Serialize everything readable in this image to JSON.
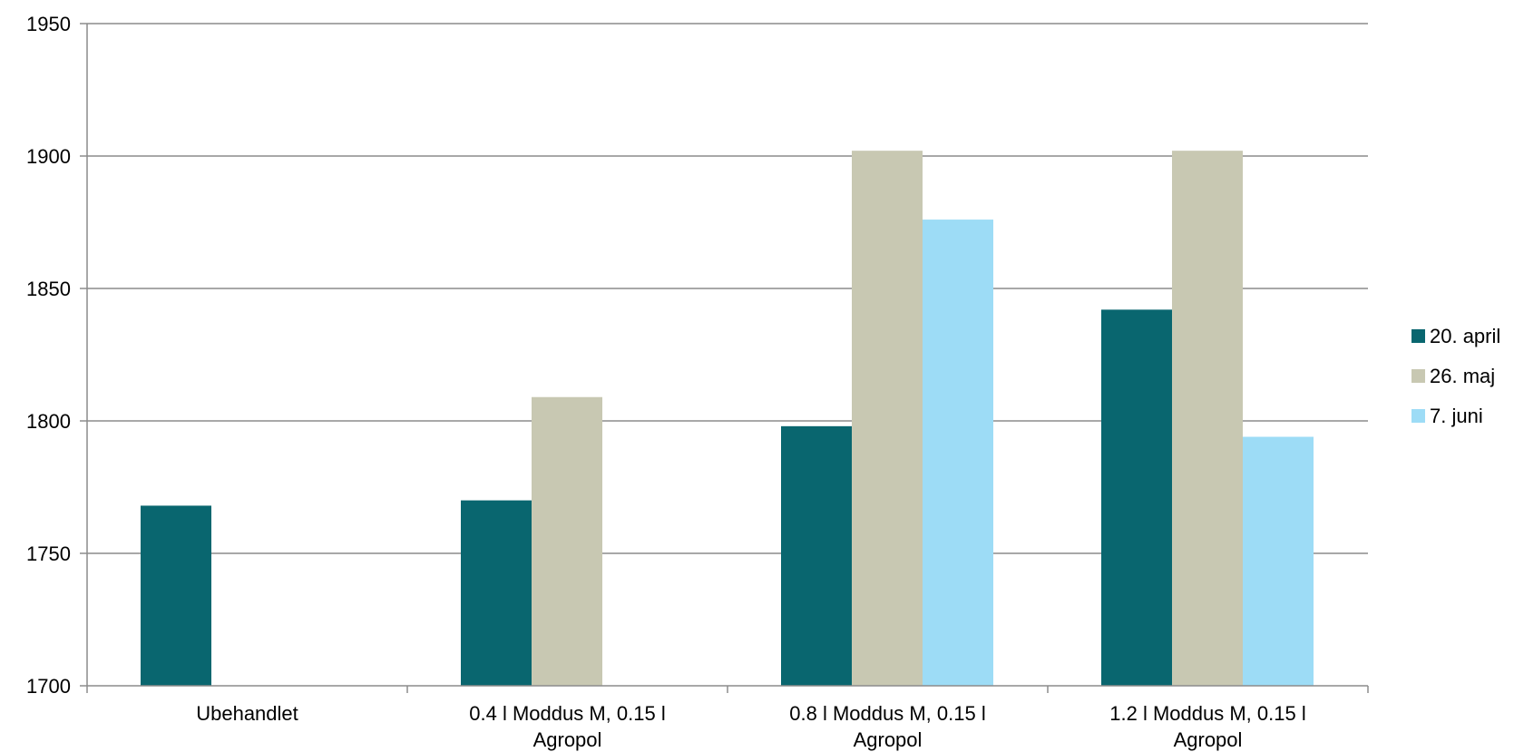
{
  "chart_data": {
    "type": "bar",
    "categories": [
      [
        "Ubehandlet"
      ],
      [
        "0.4 l Moddus M, 0.15 l",
        "Agropol"
      ],
      [
        "0.8 l Moddus M, 0.15 l",
        "Agropol"
      ],
      [
        "1.2 l Moddus M, 0.15 l",
        "Agropol"
      ]
    ],
    "series": [
      {
        "name": "20. april",
        "color": "#09666f",
        "values": [
          1768,
          1770,
          1798,
          1842
        ]
      },
      {
        "name": "26. maj",
        "color": "#c8c8b2",
        "values": [
          null,
          1809,
          1902,
          1902
        ]
      },
      {
        "name": "7. juni",
        "color": "#9ddcf6",
        "values": [
          null,
          null,
          1876,
          1794
        ]
      }
    ],
    "ylim": [
      1700,
      1950
    ],
    "yticks": [
      1700,
      1750,
      1800,
      1850,
      1900,
      1950
    ],
    "grid": true,
    "legend": "right"
  }
}
